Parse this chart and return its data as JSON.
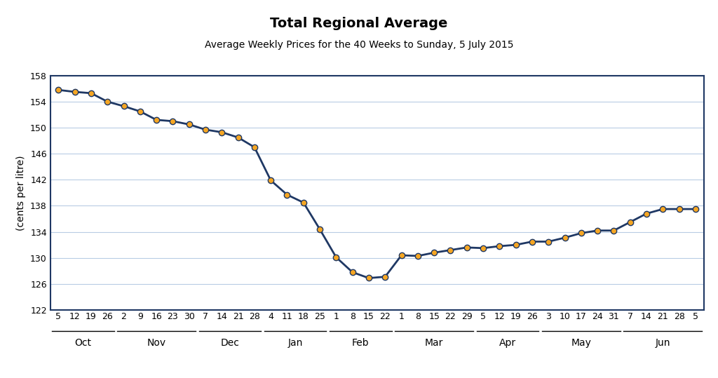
{
  "title": "Total Regional Average",
  "subtitle": "Average Weekly Prices for the 40 Weeks to Sunday, 5 July 2015",
  "ylabel": "(cents per litre)",
  "ylim": [
    122,
    158
  ],
  "yticks": [
    122,
    126,
    130,
    134,
    138,
    142,
    146,
    150,
    154,
    158
  ],
  "background_color": "#ffffff",
  "plot_bg_color": "#ffffff",
  "line_color": "#1f3864",
  "marker_color": "#f5a623",
  "marker_edge_color": "#1f3864",
  "x_labels": [
    "5",
    "12",
    "19",
    "26",
    "2",
    "9",
    "16",
    "23",
    "30",
    "7",
    "14",
    "21",
    "28",
    "4",
    "11",
    "18",
    "25",
    "1",
    "8",
    "15",
    "22",
    "1",
    "8",
    "15",
    "22",
    "29",
    "5",
    "12",
    "19",
    "26",
    "3",
    "10",
    "17",
    "24",
    "31",
    "7",
    "14",
    "21",
    "28",
    "5"
  ],
  "month_labels": [
    "Oct",
    "Nov",
    "Dec",
    "Jan",
    "Feb",
    "Mar",
    "Apr",
    "May",
    "Jun"
  ],
  "month_positions": [
    0,
    4,
    9,
    13,
    17,
    21,
    26,
    30,
    35
  ],
  "month_end_positions": [
    3,
    8,
    12,
    16,
    20,
    25,
    29,
    34,
    39
  ],
  "values": [
    155.8,
    155.5,
    155.3,
    154.0,
    153.3,
    152.5,
    151.2,
    151.0,
    150.5,
    149.7,
    149.3,
    148.5,
    147.0,
    141.9,
    139.7,
    138.5,
    134.4,
    130.1,
    127.8,
    126.9,
    127.1,
    130.4,
    130.3,
    130.8,
    131.2,
    131.6,
    131.5,
    131.8,
    132.0,
    132.5,
    132.5,
    133.1,
    133.8,
    134.2,
    134.2,
    135.5,
    136.8,
    137.5,
    137.5,
    137.5
  ],
  "title_fontsize": 14,
  "subtitle_fontsize": 10,
  "axis_label_fontsize": 10,
  "tick_fontsize": 9
}
